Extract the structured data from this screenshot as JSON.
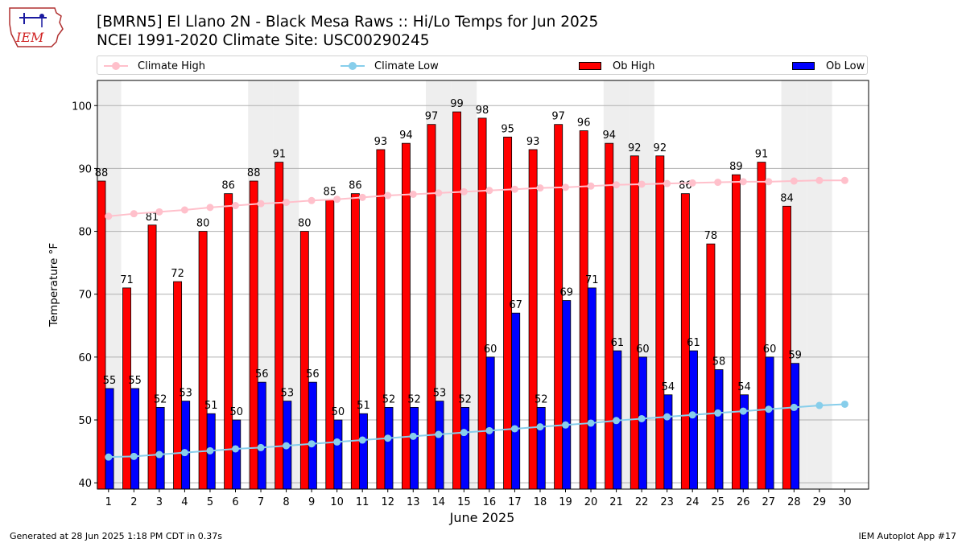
{
  "header": {
    "logo_text": "IEM",
    "title_line1": "[BMRN5] El Llano 2N - Black Mesa Raws :: Hi/Lo Temps for Jun 2025",
    "title_line2": "NCEI 1991-2020 Climate Site: USC00290245"
  },
  "legend": {
    "climate_high": "Climate High",
    "climate_low": "Climate Low",
    "ob_high": "Ob High",
    "ob_low": "Ob Low"
  },
  "colors": {
    "ob_high": "#ff0000",
    "ob_low": "#0000ff",
    "climate_high": "#ffc0cb",
    "climate_low": "#87ceeb",
    "weekend_shade": "#eeeeee",
    "grid": "#b0b0b0"
  },
  "footer": {
    "generated": "Generated at 28 Jun 2025 1:18 PM CDT in 0.37s",
    "app": "IEM Autoplot App #17"
  },
  "chart_data": {
    "type": "bar",
    "xlabel": "June 2025",
    "ylabel": "Temperature °F",
    "ylim": [
      39,
      104
    ],
    "yticks": [
      40,
      50,
      60,
      70,
      80,
      90,
      100
    ],
    "grid": "horizontal",
    "legend_placement": "top",
    "categories": [
      "1",
      "2",
      "3",
      "4",
      "5",
      "6",
      "7",
      "8",
      "9",
      "10",
      "11",
      "12",
      "13",
      "14",
      "15",
      "16",
      "17",
      "18",
      "19",
      "20",
      "21",
      "22",
      "23",
      "24",
      "25",
      "26",
      "27",
      "28",
      "29",
      "30"
    ],
    "shaded_days": [
      1,
      7,
      8,
      14,
      15,
      21,
      22,
      28,
      29
    ],
    "series": [
      {
        "name": "Ob High",
        "kind": "bar",
        "values": [
          88,
          71,
          81,
          72,
          80,
          86,
          88,
          91,
          80,
          85,
          86,
          93,
          94,
          97,
          99,
          98,
          95,
          93,
          97,
          96,
          94,
          92,
          92,
          86,
          78,
          89,
          91,
          84,
          null,
          null
        ]
      },
      {
        "name": "Ob Low",
        "kind": "bar",
        "values": [
          55,
          55,
          52,
          53,
          51,
          50,
          56,
          53,
          56,
          50,
          51,
          52,
          52,
          53,
          52,
          60,
          67,
          52,
          69,
          71,
          61,
          60,
          54,
          61,
          58,
          54,
          60,
          59,
          null,
          null
        ]
      },
      {
        "name": "Climate High",
        "kind": "line",
        "values": [
          82.4,
          82.8,
          83.1,
          83.4,
          83.8,
          84.1,
          84.4,
          84.6,
          84.9,
          85.1,
          85.4,
          85.7,
          85.9,
          86.1,
          86.3,
          86.5,
          86.7,
          86.9,
          87.0,
          87.2,
          87.4,
          87.5,
          87.6,
          87.7,
          87.8,
          87.9,
          87.9,
          88.0,
          88.1,
          88.1
        ]
      },
      {
        "name": "Climate Low",
        "kind": "line",
        "values": [
          44.1,
          44.2,
          44.5,
          44.8,
          45.1,
          45.4,
          45.6,
          45.9,
          46.2,
          46.5,
          46.8,
          47.1,
          47.4,
          47.7,
          48.0,
          48.3,
          48.6,
          48.9,
          49.2,
          49.5,
          49.9,
          50.2,
          50.5,
          50.8,
          51.1,
          51.4,
          51.7,
          52.0,
          52.3,
          52.5
        ]
      }
    ]
  }
}
